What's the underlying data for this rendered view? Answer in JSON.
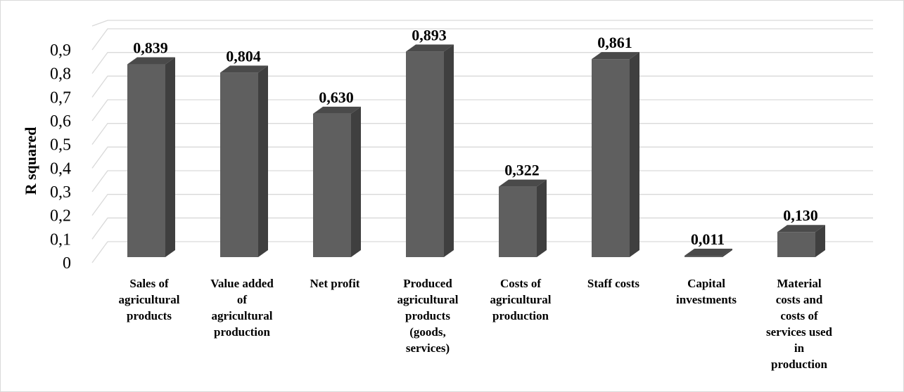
{
  "chart_data": {
    "type": "bar",
    "categories": [
      "Sales of agricultural products",
      "Value added of agricultural production",
      "Net profit",
      "Produced agricultural products (goods, services)",
      "Costs of agricultural production",
      "Staff costs",
      "Capital investments",
      "Material costs and costs of services used in production"
    ],
    "category_lines": [
      [
        "Sales of",
        "agricultural",
        "products"
      ],
      [
        "Value added",
        "of",
        "agricultural",
        "production"
      ],
      [
        "Net profit"
      ],
      [
        "Produced",
        "agricultural",
        "products",
        "(goods,",
        "services)"
      ],
      [
        "Costs of",
        "agricultural",
        "production"
      ],
      [
        "Staff costs"
      ],
      [
        "Capital",
        "investments"
      ],
      [
        "Material",
        "costs and",
        "costs of",
        "services used",
        "in",
        "production"
      ]
    ],
    "values": [
      0.839,
      0.804,
      0.63,
      0.893,
      0.322,
      0.861,
      0.011,
      0.13
    ],
    "data_labels": [
      "0,839",
      "0,804",
      "0,630",
      "0,893",
      "0,322",
      "0,861",
      "0,011",
      "0,130"
    ],
    "y_ticks": [
      "0",
      "0,1",
      "0,2",
      "0,3",
      "0,4",
      "0,5",
      "0,6",
      "0,7",
      "0,8",
      "0,9"
    ],
    "ylabel": "R squared",
    "xlabel": "",
    "title": "",
    "ylim": [
      0,
      0.9
    ],
    "style": "3d-column",
    "grid": true,
    "colors": {
      "bar_front": "#5f5f5f",
      "bar_side": "#3f3f3f",
      "bar_top": "#4a4a4a",
      "grid": "#d9d9d9",
      "text": "#000000"
    }
  }
}
